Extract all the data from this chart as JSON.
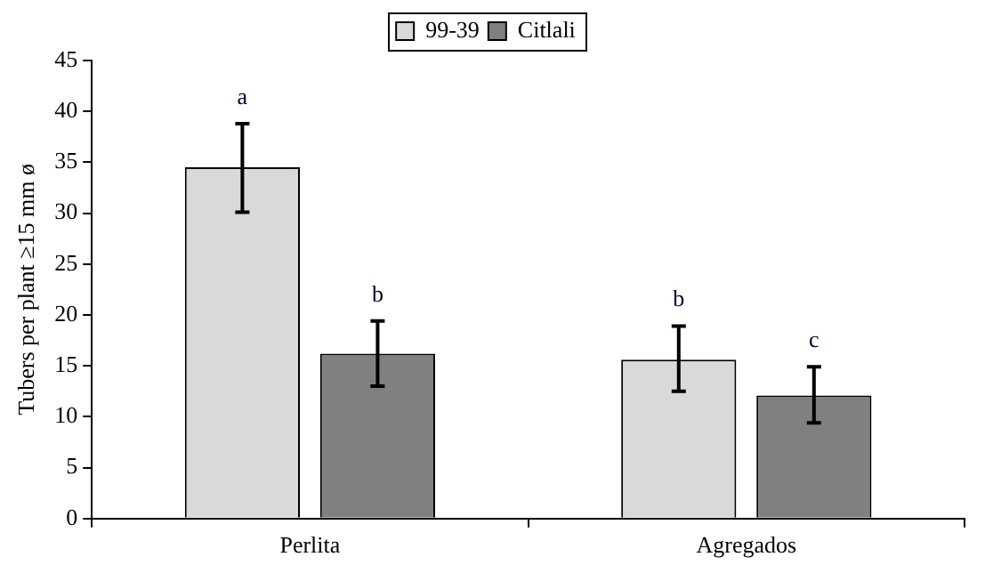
{
  "chart_data": {
    "type": "bar",
    "ylabel": "Tubers per plant ≥15 mm ø",
    "categories": [
      "Perlita",
      "Agregados"
    ],
    "series": [
      {
        "name": "99-39",
        "color": "#d9d9d9",
        "values": [
          34.5,
          15.6
        ],
        "errors": [
          [
            30.1,
            38.8
          ],
          [
            12.5,
            18.9
          ]
        ]
      },
      {
        "name": "Citlali",
        "color": "#808080",
        "values": [
          16.2,
          12.1
        ],
        "errors": [
          [
            13.0,
            19.4
          ],
          [
            9.4,
            14.9
          ]
        ]
      }
    ],
    "annotations": [
      "a",
      "b",
      "b",
      "c"
    ],
    "ylim": [
      0,
      45
    ],
    "yticks": [
      0,
      5,
      10,
      15,
      20,
      25,
      30,
      35,
      40,
      45
    ],
    "grid": false,
    "legend": "top"
  }
}
